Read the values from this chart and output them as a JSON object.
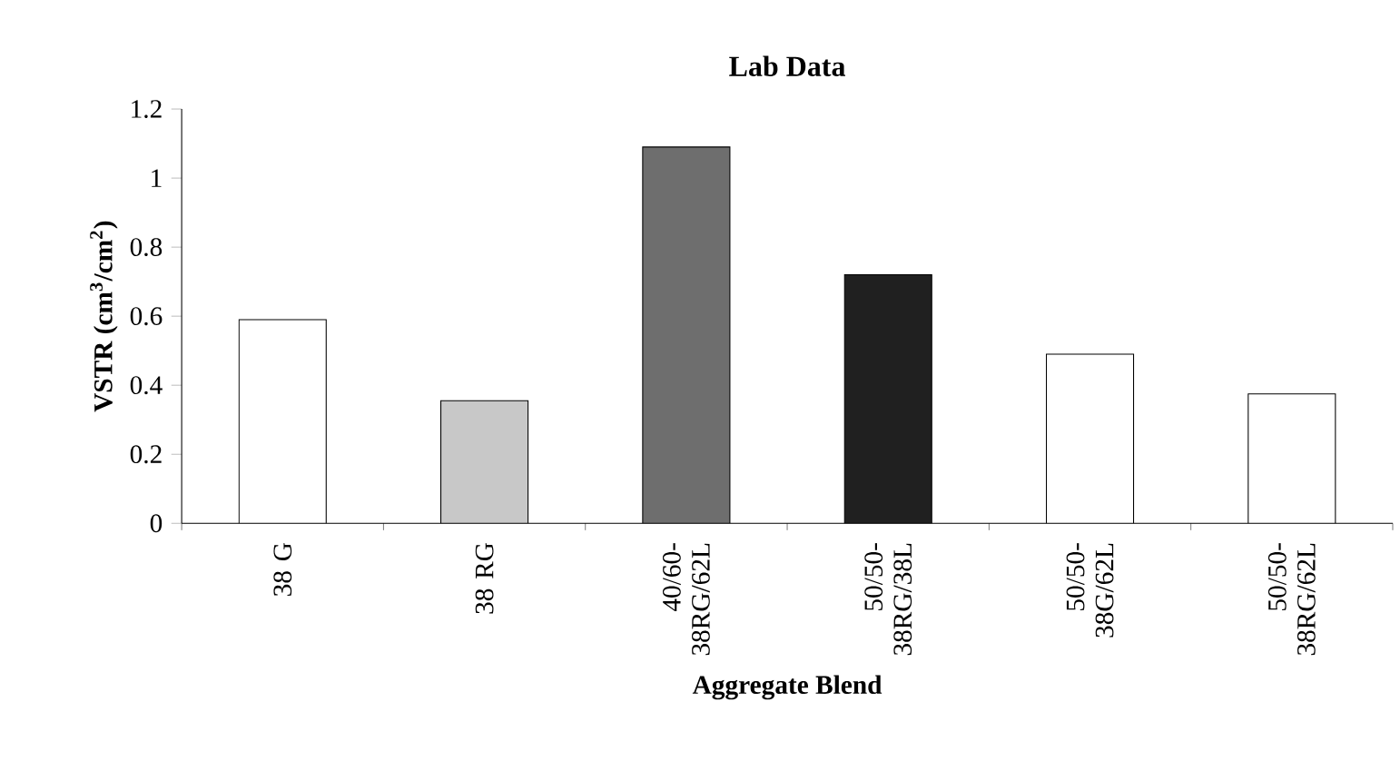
{
  "chart_data": {
    "type": "bar",
    "title": "Lab Data",
    "xlabel": "Aggregate Blend",
    "ylabel": "VSTR (cm$^{3}$/cm$^{2}$)",
    "categories": [
      "38 G",
      "38 RG",
      "40/60-38RG/62L",
      "50/50-38RG/38L",
      "50/50-38G/62L",
      "50/50-38RG/62L"
    ],
    "values": [
      0.59,
      0.355,
      1.09,
      0.72,
      0.49,
      0.375
    ],
    "colors": [
      "#ffffff",
      "#c8c8c8",
      "#6e6e6e",
      "#202020",
      "#ffffff",
      "#ffffff"
    ],
    "ylim": [
      0,
      1.2
    ],
    "yticks": [
      0,
      0.2,
      0.4,
      0.6,
      0.8,
      1,
      1.2
    ],
    "grid": false
  }
}
